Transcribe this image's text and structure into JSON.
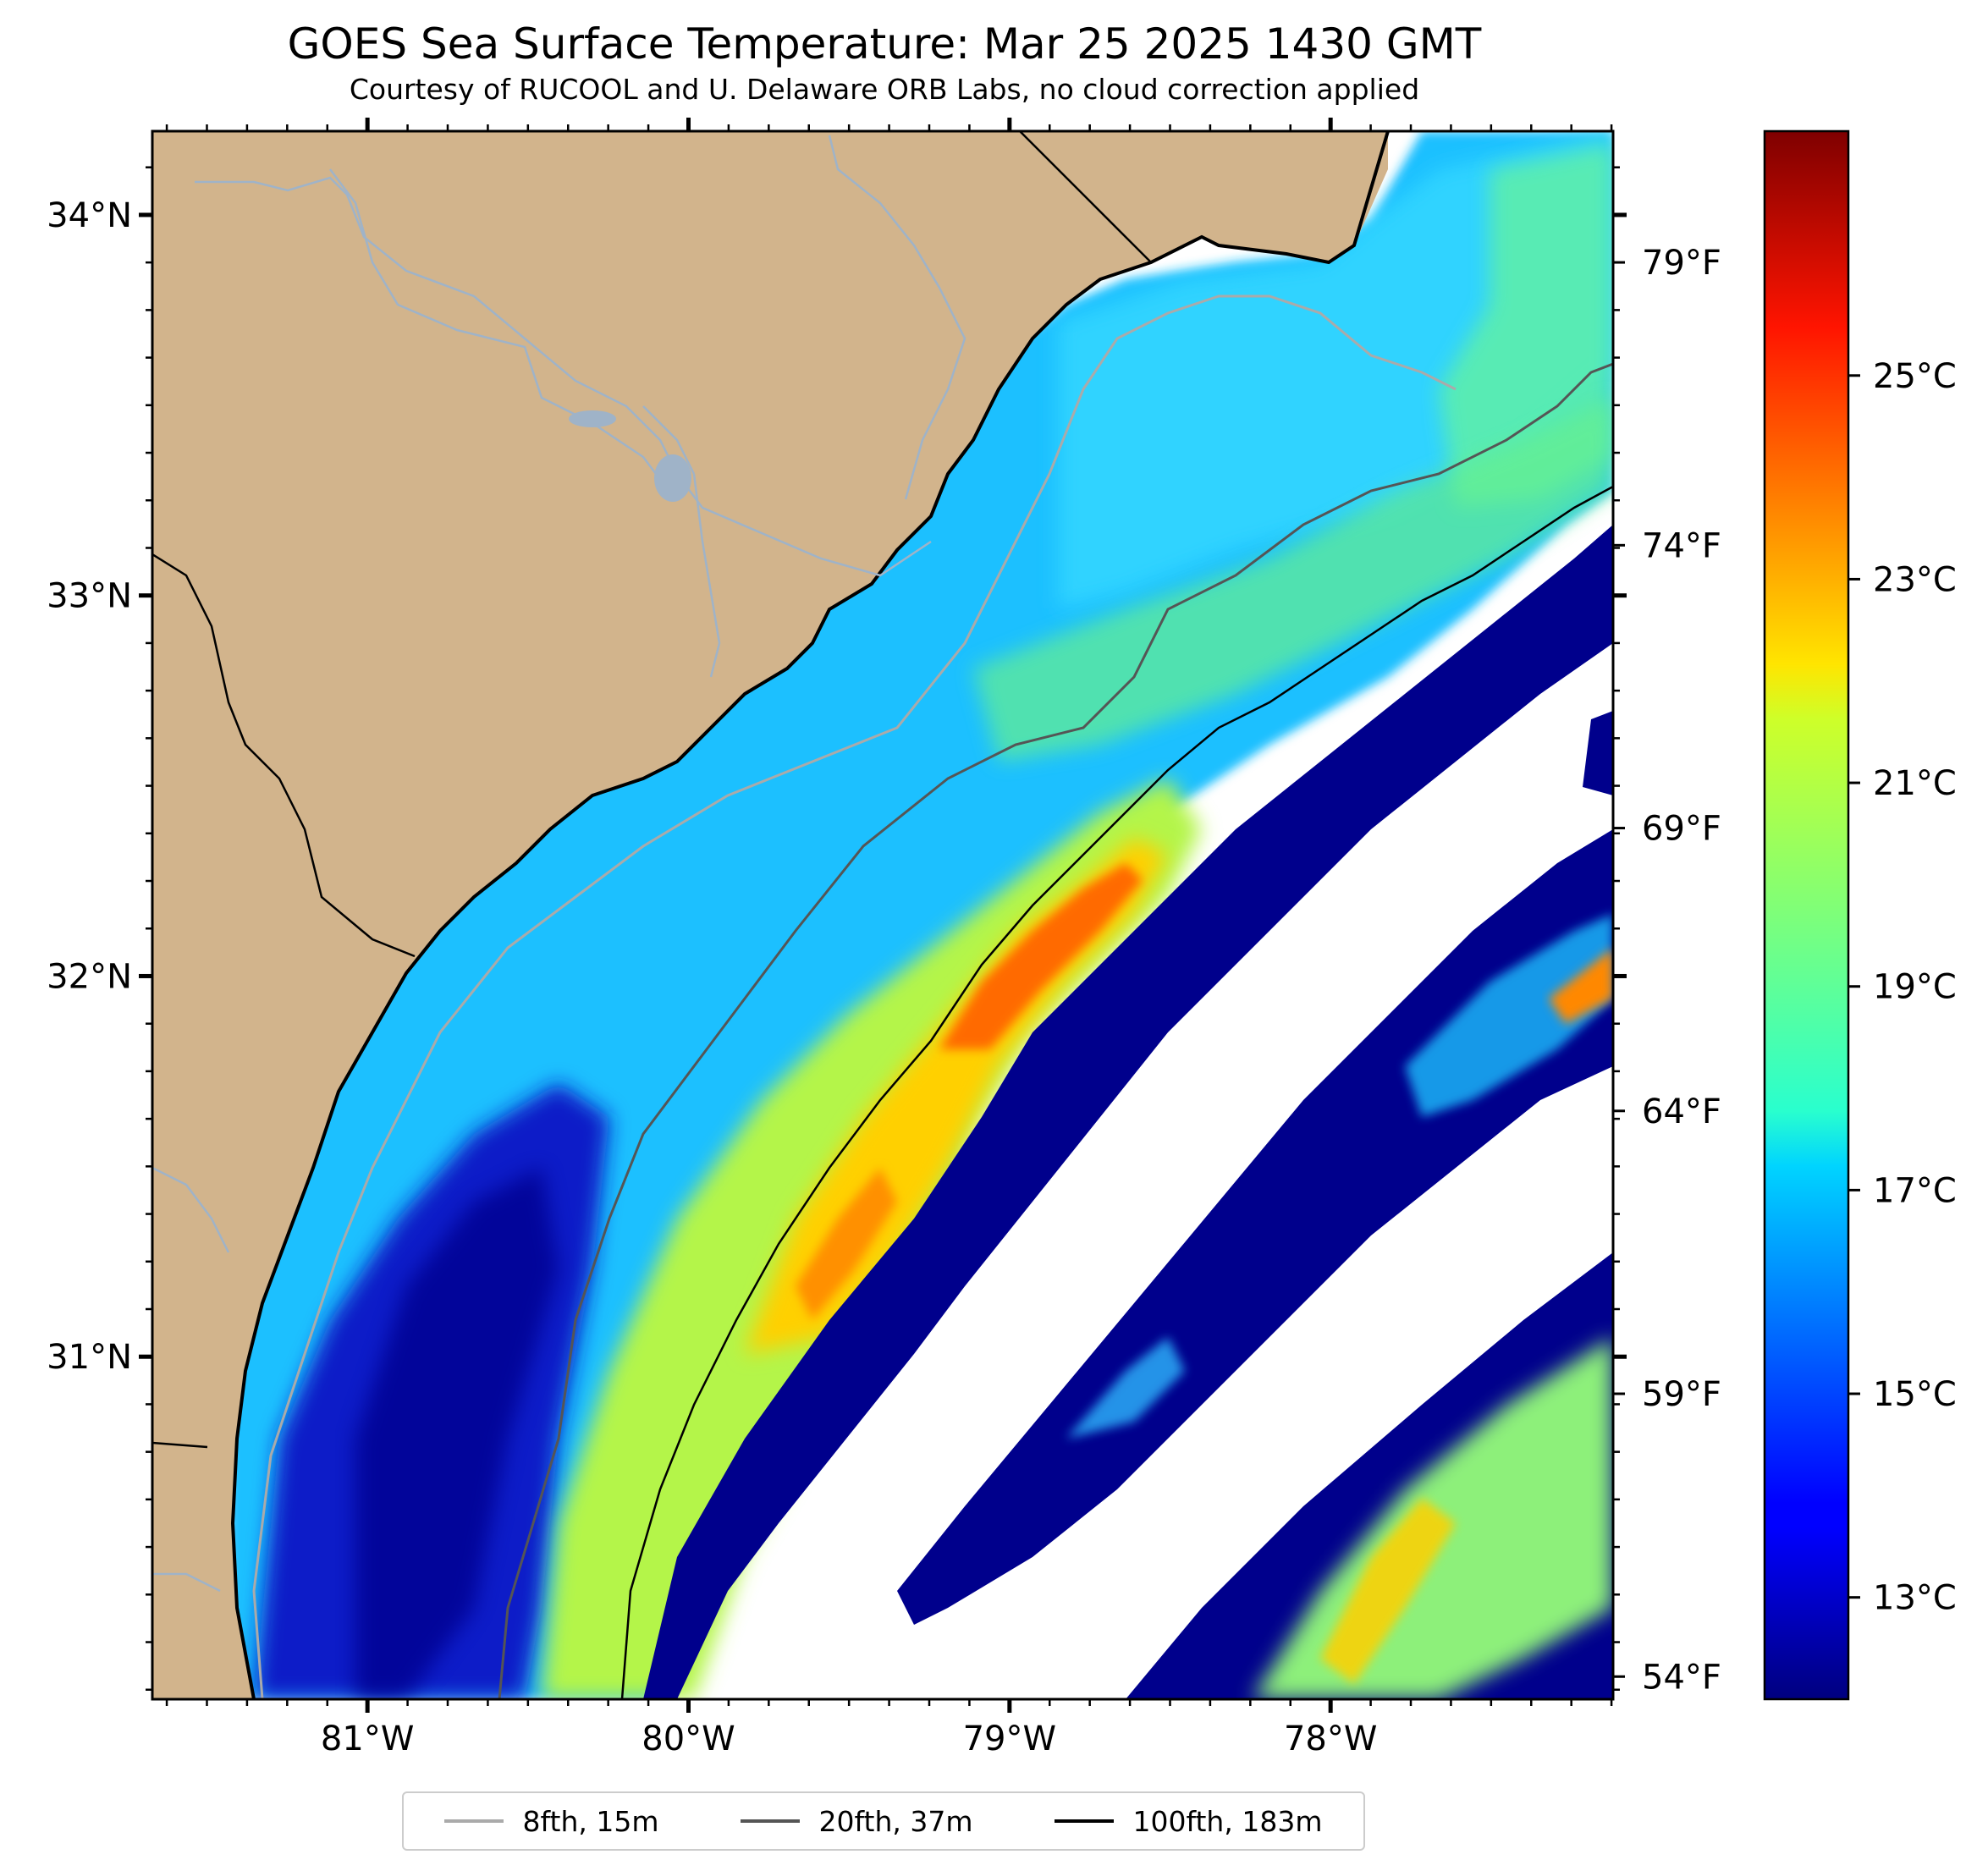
{
  "header": {
    "title": "GOES Sea Surface Temperature: Mar 25 2025 1430 GMT",
    "subtitle": "Courtesy of RUCOOL and U. Delaware ORB Labs, no cloud correction applied"
  },
  "map": {
    "extent_lon": [
      -81.67,
      -77.12
    ],
    "extent_lat": [
      30.1,
      34.22
    ],
    "lat_ticks": [
      {
        "value": 34,
        "label": "34°N"
      },
      {
        "value": 33,
        "label": "33°N"
      },
      {
        "value": 32,
        "label": "32°N"
      },
      {
        "value": 31,
        "label": "31°N"
      }
    ],
    "lon_ticks": [
      {
        "value": -81,
        "label": "81°W"
      },
      {
        "value": -80,
        "label": "80°W"
      },
      {
        "value": -79,
        "label": "79°W"
      },
      {
        "value": -78,
        "label": "78°W"
      }
    ],
    "colors": {
      "land": "#d2b48c",
      "no_data": "#ffffff",
      "rivers": "#9fb3c8",
      "coastline": "#000000"
    }
  },
  "colorbar": {
    "colormap": "jet",
    "celsius_range": [
      12,
      27.4
    ],
    "celsius_ticks": [
      {
        "value": 13,
        "label": "13°C"
      },
      {
        "value": 15,
        "label": "15°C"
      },
      {
        "value": 17,
        "label": "17°C"
      },
      {
        "value": 19,
        "label": "19°C"
      },
      {
        "value": 21,
        "label": "21°C"
      },
      {
        "value": 23,
        "label": "23°C"
      },
      {
        "value": 25,
        "label": "25°C"
      }
    ],
    "fahrenheit_ticks": [
      {
        "value": 54,
        "label": "54°F"
      },
      {
        "value": 59,
        "label": "59°F"
      },
      {
        "value": 64,
        "label": "64°F"
      },
      {
        "value": 69,
        "label": "69°F"
      },
      {
        "value": 74,
        "label": "74°F"
      },
      {
        "value": 79,
        "label": "79°F"
      }
    ]
  },
  "legend": {
    "entries": [
      {
        "label": "8fth, 15m",
        "color": "#aaaaaa"
      },
      {
        "label": "20fth, 37m",
        "color": "#555555"
      },
      {
        "label": "100fth, 183m",
        "color": "#000000"
      }
    ]
  }
}
